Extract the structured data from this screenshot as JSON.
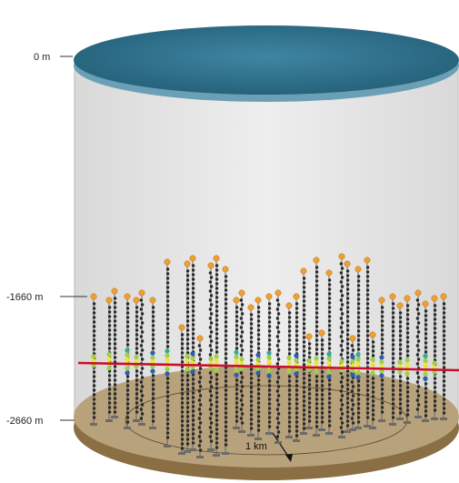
{
  "depth_markers": [
    {
      "id": "surface",
      "text": "0 m"
    },
    {
      "id": "top-dom",
      "text": "-1660 m"
    },
    {
      "id": "bottom",
      "text": "-2660 m"
    }
  ],
  "scale": {
    "text": "1 km"
  },
  "colors": {
    "sea": "#2e6f8b",
    "sea_rim": "#6a9fb5",
    "cylinder": "#e6e6e6",
    "seabed": "#b8a27c",
    "seabed_rim": "#8a6e44",
    "track": "#c8102e",
    "buoy": "#f0a030",
    "dom": "#2a2a2a",
    "hit_colors": [
      "#2f5bb0",
      "#38a89d",
      "#9bd14a",
      "#f3e13c"
    ]
  }
}
